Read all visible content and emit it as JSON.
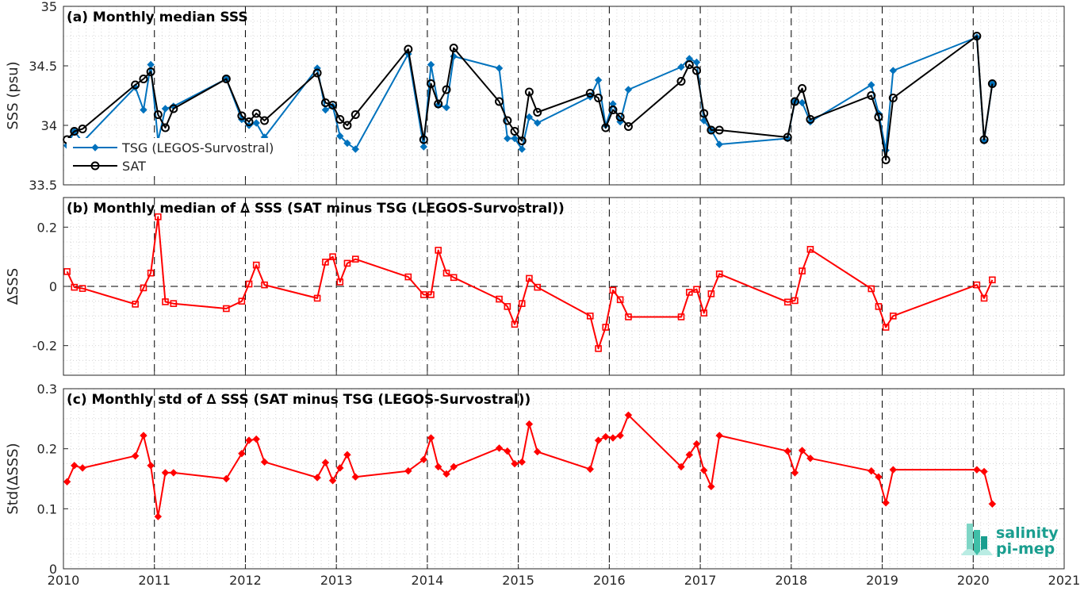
{
  "colors": {
    "tsg": "#0072BD",
    "sat": "#000000",
    "delta": "#FF0000",
    "logo": "#1a9e8f"
  },
  "logo": {
    "line1": "salinity",
    "line2": "pi-mep"
  },
  "chart_data": [
    {
      "type": "line",
      "title": "(a) Monthly median SSS",
      "ylabel": "SSS (psu)",
      "xlim": [
        2010,
        2021
      ],
      "ylim": [
        33.5,
        35
      ],
      "yticks": [
        33.5,
        34,
        34.5,
        35
      ],
      "ytick_labels": [
        "33.5",
        "34",
        "34.5",
        "35"
      ],
      "grid": true,
      "legend": "left-middle",
      "series": [
        {
          "name": "TSG (LEGOS-Survostral)",
          "marker": "diamond",
          "x": [
            2010.04,
            2010.12,
            2010.21,
            2010.79,
            2010.88,
            2010.96,
            2011.04,
            2011.12,
            2011.21,
            2011.79,
            2011.96,
            2012.04,
            2012.12,
            2012.21,
            2012.79,
            2012.88,
            2012.96,
            2013.04,
            2013.12,
            2013.21,
            2013.79,
            2013.96,
            2014.04,
            2014.12,
            2014.21,
            2014.29,
            2014.79,
            2014.88,
            2014.96,
            2015.04,
            2015.12,
            2015.21,
            2015.79,
            2015.88,
            2015.96,
            2016.04,
            2016.12,
            2016.21,
            2016.79,
            2016.88,
            2016.96,
            2017.04,
            2017.12,
            2017.21,
            2017.96,
            2018.04,
            2018.12,
            2018.21,
            2018.88,
            2018.96,
            2019.04,
            2019.12,
            2020.04,
            2020.12,
            2020.21
          ],
          "y": [
            33.83,
            33.95,
            33.86,
            34.32,
            34.13,
            34.51,
            33.87,
            34.14,
            34.16,
            34.39,
            34.05,
            34.0,
            34.02,
            33.9,
            34.48,
            34.13,
            34.16,
            33.91,
            33.85,
            33.8,
            34.6,
            33.82,
            34.51,
            34.17,
            34.15,
            34.58,
            34.48,
            33.89,
            33.89,
            33.8,
            34.07,
            34.02,
            34.24,
            34.38,
            34.0,
            34.18,
            34.03,
            34.3,
            34.49,
            34.56,
            34.53,
            34.04,
            33.96,
            33.84,
            33.89,
            34.2,
            34.19,
            34.03,
            34.34,
            34.1,
            33.79,
            34.46,
            34.74,
            33.87,
            34.35
          ]
        },
        {
          "name": "SAT",
          "marker": "circle",
          "x": [
            2010.04,
            2010.12,
            2010.21,
            2010.79,
            2010.88,
            2010.96,
            2011.04,
            2011.12,
            2011.21,
            2011.79,
            2011.96,
            2012.04,
            2012.12,
            2012.21,
            2012.79,
            2012.88,
            2012.96,
            2013.04,
            2013.12,
            2013.21,
            2013.79,
            2013.96,
            2014.04,
            2014.12,
            2014.21,
            2014.29,
            2014.79,
            2014.88,
            2014.96,
            2015.04,
            2015.12,
            2015.21,
            2015.79,
            2015.88,
            2015.96,
            2016.04,
            2016.12,
            2016.21,
            2016.79,
            2016.88,
            2016.96,
            2017.04,
            2017.12,
            2017.21,
            2017.96,
            2018.04,
            2018.12,
            2018.21,
            2018.88,
            2018.96,
            2019.04,
            2019.12,
            2020.04,
            2020.12,
            2020.21
          ],
          "y": [
            33.88,
            33.95,
            33.97,
            34.34,
            34.39,
            34.45,
            34.09,
            33.98,
            34.14,
            34.39,
            34.08,
            34.03,
            34.1,
            34.04,
            34.44,
            34.19,
            34.17,
            34.05,
            34.0,
            34.09,
            34.64,
            33.88,
            34.35,
            34.18,
            34.3,
            34.65,
            34.2,
            34.04,
            33.95,
            33.87,
            34.28,
            34.11,
            34.27,
            34.23,
            33.98,
            34.13,
            34.07,
            33.99,
            34.37,
            34.51,
            34.46,
            34.1,
            33.96,
            33.96,
            33.9,
            34.2,
            34.31,
            34.05,
            34.25,
            34.07,
            33.71,
            34.23,
            34.75,
            33.88,
            34.35
          ]
        }
      ]
    },
    {
      "type": "line",
      "title": "(b) Monthly median of ∆ SSS (SAT minus TSG (LEGOS-Survostral))",
      "ylabel": "∆SSS",
      "xlim": [
        2010,
        2021
      ],
      "ylim": [
        -0.3,
        0.3
      ],
      "yticks": [
        -0.2,
        0,
        0.2
      ],
      "ytick_labels": [
        "-0.2",
        "0",
        "0.2"
      ],
      "grid": true,
      "zero_line": true,
      "series": [
        {
          "marker": "square",
          "x": [
            2010.04,
            2010.12,
            2010.21,
            2010.79,
            2010.88,
            2010.96,
            2011.04,
            2011.12,
            2011.21,
            2011.79,
            2011.96,
            2012.04,
            2012.12,
            2012.21,
            2012.79,
            2012.88,
            2012.96,
            2013.04,
            2013.12,
            2013.21,
            2013.79,
            2013.96,
            2014.04,
            2014.12,
            2014.21,
            2014.29,
            2014.79,
            2014.88,
            2014.96,
            2015.04,
            2015.12,
            2015.21,
            2015.79,
            2015.88,
            2015.96,
            2016.04,
            2016.12,
            2016.21,
            2016.79,
            2016.88,
            2016.96,
            2017.04,
            2017.12,
            2017.21,
            2017.96,
            2018.04,
            2018.12,
            2018.21,
            2018.88,
            2018.96,
            2019.04,
            2019.12,
            2020.04,
            2020.12,
            2020.21
          ],
          "y": [
            0.05,
            -0.003,
            -0.007,
            -0.06,
            -0.005,
            0.045,
            0.235,
            -0.052,
            -0.058,
            -0.075,
            -0.05,
            0.008,
            0.072,
            0.005,
            -0.04,
            0.082,
            0.1,
            0.015,
            0.078,
            0.092,
            0.032,
            -0.028,
            -0.028,
            0.122,
            0.045,
            0.03,
            -0.043,
            -0.068,
            -0.128,
            -0.058,
            0.027,
            -0.003,
            -0.1,
            -0.21,
            -0.138,
            -0.013,
            -0.045,
            -0.103,
            -0.103,
            -0.02,
            -0.01,
            -0.09,
            -0.025,
            0.042,
            -0.053,
            -0.048,
            0.052,
            0.125,
            -0.008,
            -0.068,
            -0.138,
            -0.1,
            0.005,
            -0.04,
            0.022
          ]
        }
      ]
    },
    {
      "type": "line",
      "title": "(c) Monthly std of ∆ SSS (SAT minus TSG (LEGOS-Survostral))",
      "ylabel": "Std(∆SSS)",
      "xlabel": "",
      "xlim": [
        2010,
        2021
      ],
      "xticks": [
        2010,
        2011,
        2012,
        2013,
        2014,
        2015,
        2016,
        2017,
        2018,
        2019,
        2020,
        2021
      ],
      "xtick_labels": [
        "2010",
        "2011",
        "2012",
        "2013",
        "2014",
        "2015",
        "2016",
        "2017",
        "2018",
        "2019",
        "2020",
        "2021"
      ],
      "ylim": [
        0,
        0.3
      ],
      "yticks": [
        0,
        0.1,
        0.2,
        0.3
      ],
      "ytick_labels": [
        "0",
        "0.1",
        "0.2",
        "0.3"
      ],
      "grid": true,
      "series": [
        {
          "marker": "diamond",
          "x": [
            2010.04,
            2010.12,
            2010.21,
            2010.79,
            2010.88,
            2010.96,
            2011.04,
            2011.12,
            2011.21,
            2011.79,
            2011.96,
            2012.04,
            2012.12,
            2012.21,
            2012.79,
            2012.88,
            2012.96,
            2013.04,
            2013.12,
            2013.21,
            2013.79,
            2013.96,
            2014.04,
            2014.12,
            2014.21,
            2014.29,
            2014.79,
            2014.88,
            2014.96,
            2015.04,
            2015.12,
            2015.21,
            2015.79,
            2015.88,
            2015.96,
            2016.04,
            2016.12,
            2016.21,
            2016.79,
            2016.88,
            2016.96,
            2017.04,
            2017.12,
            2017.21,
            2017.96,
            2018.04,
            2018.12,
            2018.21,
            2018.88,
            2018.96,
            2019.04,
            2019.12,
            2020.04,
            2020.12,
            2020.21
          ],
          "y": [
            0.145,
            0.172,
            0.168,
            0.188,
            0.222,
            0.172,
            0.087,
            0.16,
            0.16,
            0.15,
            0.192,
            0.214,
            0.216,
            0.178,
            0.152,
            0.177,
            0.147,
            0.168,
            0.19,
            0.153,
            0.163,
            0.182,
            0.218,
            0.17,
            0.158,
            0.17,
            0.201,
            0.196,
            0.175,
            0.178,
            0.241,
            0.195,
            0.166,
            0.214,
            0.22,
            0.218,
            0.222,
            0.256,
            0.17,
            0.19,
            0.208,
            0.164,
            0.137,
            0.222,
            0.196,
            0.16,
            0.197,
            0.184,
            0.163,
            0.153,
            0.11,
            0.165,
            0.165,
            0.162,
            0.108
          ]
        }
      ]
    }
  ]
}
